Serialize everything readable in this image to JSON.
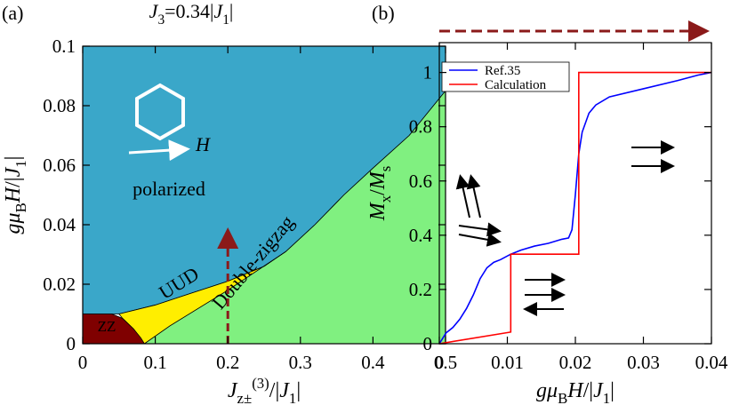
{
  "chart_data": [
    {
      "type": "area",
      "panel_label": "(a)",
      "title": [
        {
          "text": "J",
          "italic": true
        },
        {
          "text": "3",
          "sub": true
        },
        {
          "text": "=0.34|"
        },
        {
          "text": "J",
          "italic": true
        },
        {
          "text": "1",
          "sub": true
        },
        {
          "text": "|"
        }
      ],
      "xlabel": [
        {
          "text": "J",
          "italic": true
        },
        {
          "text": "z±",
          "sub": true
        },
        {
          "text": "(3)",
          "sup": true
        },
        {
          "text": "/|"
        },
        {
          "text": "J",
          "italic": true
        },
        {
          "text": "1",
          "sub": true
        },
        {
          "text": "|"
        }
      ],
      "ylabel": [
        {
          "text": "gμ",
          "italic": true
        },
        {
          "text": "B",
          "sub": true
        },
        {
          "text": "H",
          "italic": true
        },
        {
          "text": "/|"
        },
        {
          "text": "J",
          "italic": true
        },
        {
          "text": "1",
          "sub": true
        },
        {
          "text": "|"
        }
      ],
      "xlim": [
        0,
        0.5
      ],
      "ylim": [
        0,
        0.1
      ],
      "xticks": [
        0,
        0.1,
        0.2,
        0.3,
        0.4,
        0.5
      ],
      "yticks": [
        0,
        0.02,
        0.04,
        0.06,
        0.08,
        0.1
      ],
      "regions": [
        {
          "name": "polarized",
          "color": "#3aa7c9",
          "x": [
            0,
            0,
            0.5,
            0.5,
            0.45,
            0.4,
            0.36,
            0.32,
            0.28,
            0.25,
            0.2,
            0.15,
            0.1,
            0.05
          ],
          "values": [
            0.01,
            0.1,
            0.1,
            0.085,
            0.07,
            0.059,
            0.05,
            0.04,
            0.031,
            0.026,
            0.021,
            0.017,
            0.013,
            0.01
          ]
        },
        {
          "name": "Double-zigzag",
          "color": "#80f080",
          "x": [
            0.085,
            0.12,
            0.2,
            0.28,
            0.32,
            0.36,
            0.4,
            0.45,
            0.5,
            0.5
          ],
          "values": [
            0,
            0.006,
            0.018,
            0.031,
            0.04,
            0.05,
            0.059,
            0.07,
            0.085,
            0
          ]
        },
        {
          "name": "UUD",
          "color": "#ffee00",
          "x": [
            0.05,
            0.1,
            0.15,
            0.2,
            0.25,
            0.28,
            0.2,
            0.12,
            0.085,
            0.07,
            0.055
          ],
          "values": [
            0.01,
            0.013,
            0.017,
            0.021,
            0.026,
            0.031,
            0.018,
            0.006,
            0,
            0.005,
            0.0085
          ]
        },
        {
          "name": "ZZ",
          "color": "#7f0000",
          "x": [
            0,
            0,
            0.04,
            0.055,
            0.07,
            0.08,
            0.085
          ],
          "values": [
            0,
            0.01,
            0.01,
            0.0085,
            0.005,
            0.002,
            0
          ]
        }
      ],
      "annotations": [
        {
          "text": "H"
        }
      ]
    },
    {
      "type": "line",
      "panel_label": "(b)",
      "xlabel": [
        {
          "text": "gμ",
          "italic": true
        },
        {
          "text": "B",
          "sub": true
        },
        {
          "text": "H",
          "italic": true
        },
        {
          "text": "/|"
        },
        {
          "text": "J",
          "italic": true
        },
        {
          "text": "1",
          "sub": true
        },
        {
          "text": "|"
        }
      ],
      "ylabel": [
        {
          "text": "M",
          "italic": true
        },
        {
          "text": "x",
          "sub": true
        },
        {
          "text": "/"
        },
        {
          "text": "M",
          "italic": true
        },
        {
          "text": "s",
          "sub": true
        }
      ],
      "xlim": [
        0,
        0.04
      ],
      "ylim": [
        0,
        1.11
      ],
      "xticks": [
        0,
        0.01,
        0.02,
        0.03,
        0.04
      ],
      "yticks": [
        0,
        0.2,
        0.4,
        0.6,
        0.8,
        1
      ],
      "legend": "upper left",
      "series": [
        {
          "name": "Ref.35",
          "color": "#0000ff",
          "x": [
            0,
            0.001,
            0.002,
            0.003,
            0.004,
            0.005,
            0.006,
            0.007,
            0.008,
            0.009,
            0.0105,
            0.012,
            0.014,
            0.016,
            0.018,
            0.019,
            0.0195,
            0.02,
            0.0205,
            0.021,
            0.022,
            0.023,
            0.025,
            0.03,
            0.035,
            0.038,
            0.04
          ],
          "values": [
            0,
            0.04,
            0.06,
            0.09,
            0.13,
            0.18,
            0.24,
            0.28,
            0.3,
            0.31,
            0.33,
            0.345,
            0.36,
            0.37,
            0.385,
            0.39,
            0.42,
            0.55,
            0.7,
            0.78,
            0.85,
            0.88,
            0.91,
            0.94,
            0.97,
            0.99,
            1
          ]
        },
        {
          "name": "Calculation",
          "color": "#ff0000",
          "x": [
            0,
            0.0105,
            0.0105,
            0.0205,
            0.0205,
            0.04
          ],
          "values": [
            0,
            0.043,
            0.33,
            0.33,
            1,
            1
          ]
        }
      ]
    }
  ]
}
